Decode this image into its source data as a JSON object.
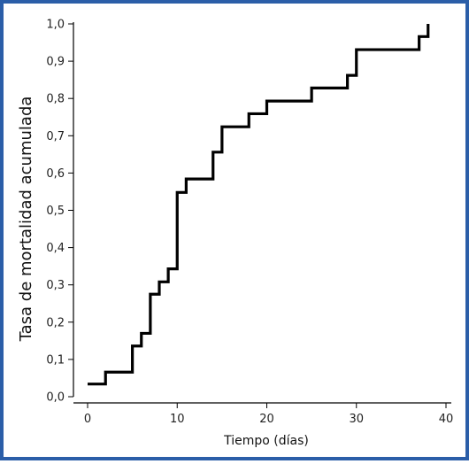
{
  "chart_data": {
    "type": "line",
    "step": true,
    "title": "",
    "xlabel": "Tiempo (días)",
    "ylabel": "Tasa de mortalidad acumulada",
    "xlim": [
      0,
      40
    ],
    "ylim": [
      0,
      1.0
    ],
    "x_ticks": [
      0,
      10,
      20,
      30,
      40
    ],
    "x_tick_labels": [
      "0",
      "10",
      "20",
      "30",
      "40"
    ],
    "y_ticks": [
      0,
      0.1,
      0.2,
      0.3,
      0.4,
      0.5,
      0.6,
      0.7,
      0.8,
      0.9,
      1.0
    ],
    "y_tick_labels": [
      "0,0",
      "0,1",
      "0,2",
      "0,3",
      "0,4",
      "0,5",
      "0,6",
      "0,7",
      "0,8",
      "0,9",
      "1,0"
    ],
    "grid": false,
    "legend": "none",
    "line_color": "#000000",
    "frame_color": "#2b5ea8",
    "series": [
      {
        "x": [
          0,
          2,
          5,
          6,
          7,
          8,
          9,
          10,
          11,
          14,
          15,
          18,
          20,
          25,
          29,
          30,
          37,
          38
        ],
        "y": [
          0.034,
          0.066,
          0.136,
          0.17,
          0.275,
          0.308,
          0.343,
          0.548,
          0.584,
          0.656,
          0.724,
          0.759,
          0.793,
          0.828,
          0.862,
          0.931,
          0.966,
          1.0
        ]
      }
    ]
  }
}
